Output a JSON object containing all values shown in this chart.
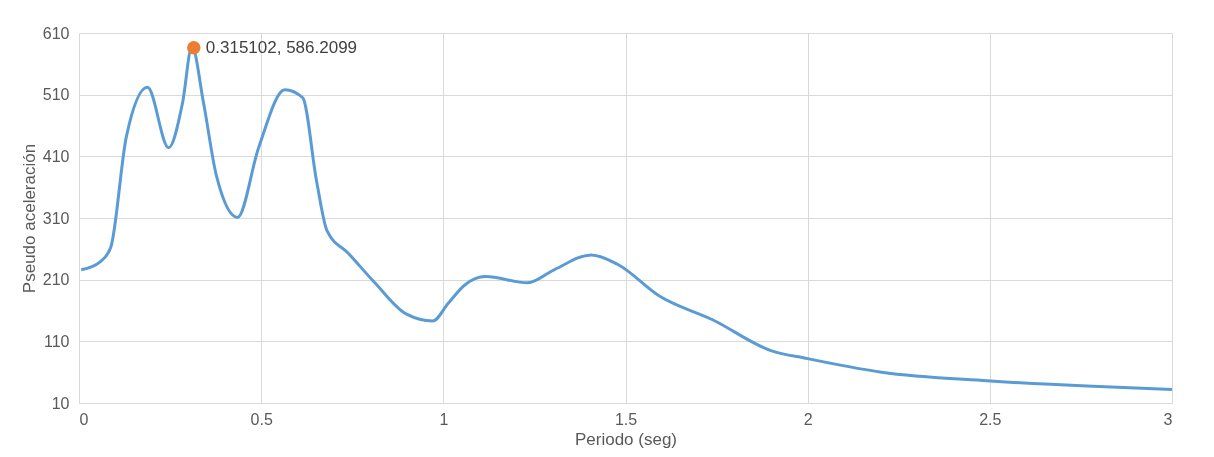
{
  "chart_data": {
    "type": "line",
    "xlabel": "Periodo (seg)",
    "ylabel": "Pseudo aceleración",
    "xlim": [
      0,
      3
    ],
    "xticks": [
      0,
      0.5,
      1,
      1.5,
      2,
      2.5,
      3
    ],
    "ylim": [
      10,
      610
    ],
    "yticks": [
      10,
      110,
      210,
      310,
      410,
      510,
      610
    ],
    "grid": true,
    "series": [
      {
        "color": "#5b9bd5",
        "x": [
          0.006,
          0.058,
          0.087,
          0.13,
          0.188,
          0.246,
          0.284,
          0.31,
          0.342,
          0.377,
          0.435,
          0.493,
          0.565,
          0.614,
          0.652,
          0.681,
          0.739,
          0.812,
          0.899,
          0.971,
          1.014,
          1.058,
          1.116,
          1.232,
          1.304,
          1.406,
          1.478,
          1.594,
          1.739,
          1.899,
          2.0,
          2.203,
          2.493,
          2.783,
          3.0
        ],
        "values": [
          226,
          239,
          262,
          442,
          522,
          424,
          496,
          588,
          496,
          379,
          311,
          424,
          518,
          505,
          370,
          289,
          253,
          205,
          154,
          143,
          172,
          201,
          215,
          205,
          226,
          250,
          235,
          183,
          145,
          95,
          82,
          60,
          46,
          37,
          32
        ]
      },
      {
        "type": "scatter",
        "marker": "circle",
        "color": "#ed7d31",
        "x": [
          0.315102
        ],
        "values": [
          586.2099
        ],
        "value_labels": [
          "0.315102, 586.2099"
        ]
      }
    ]
  }
}
